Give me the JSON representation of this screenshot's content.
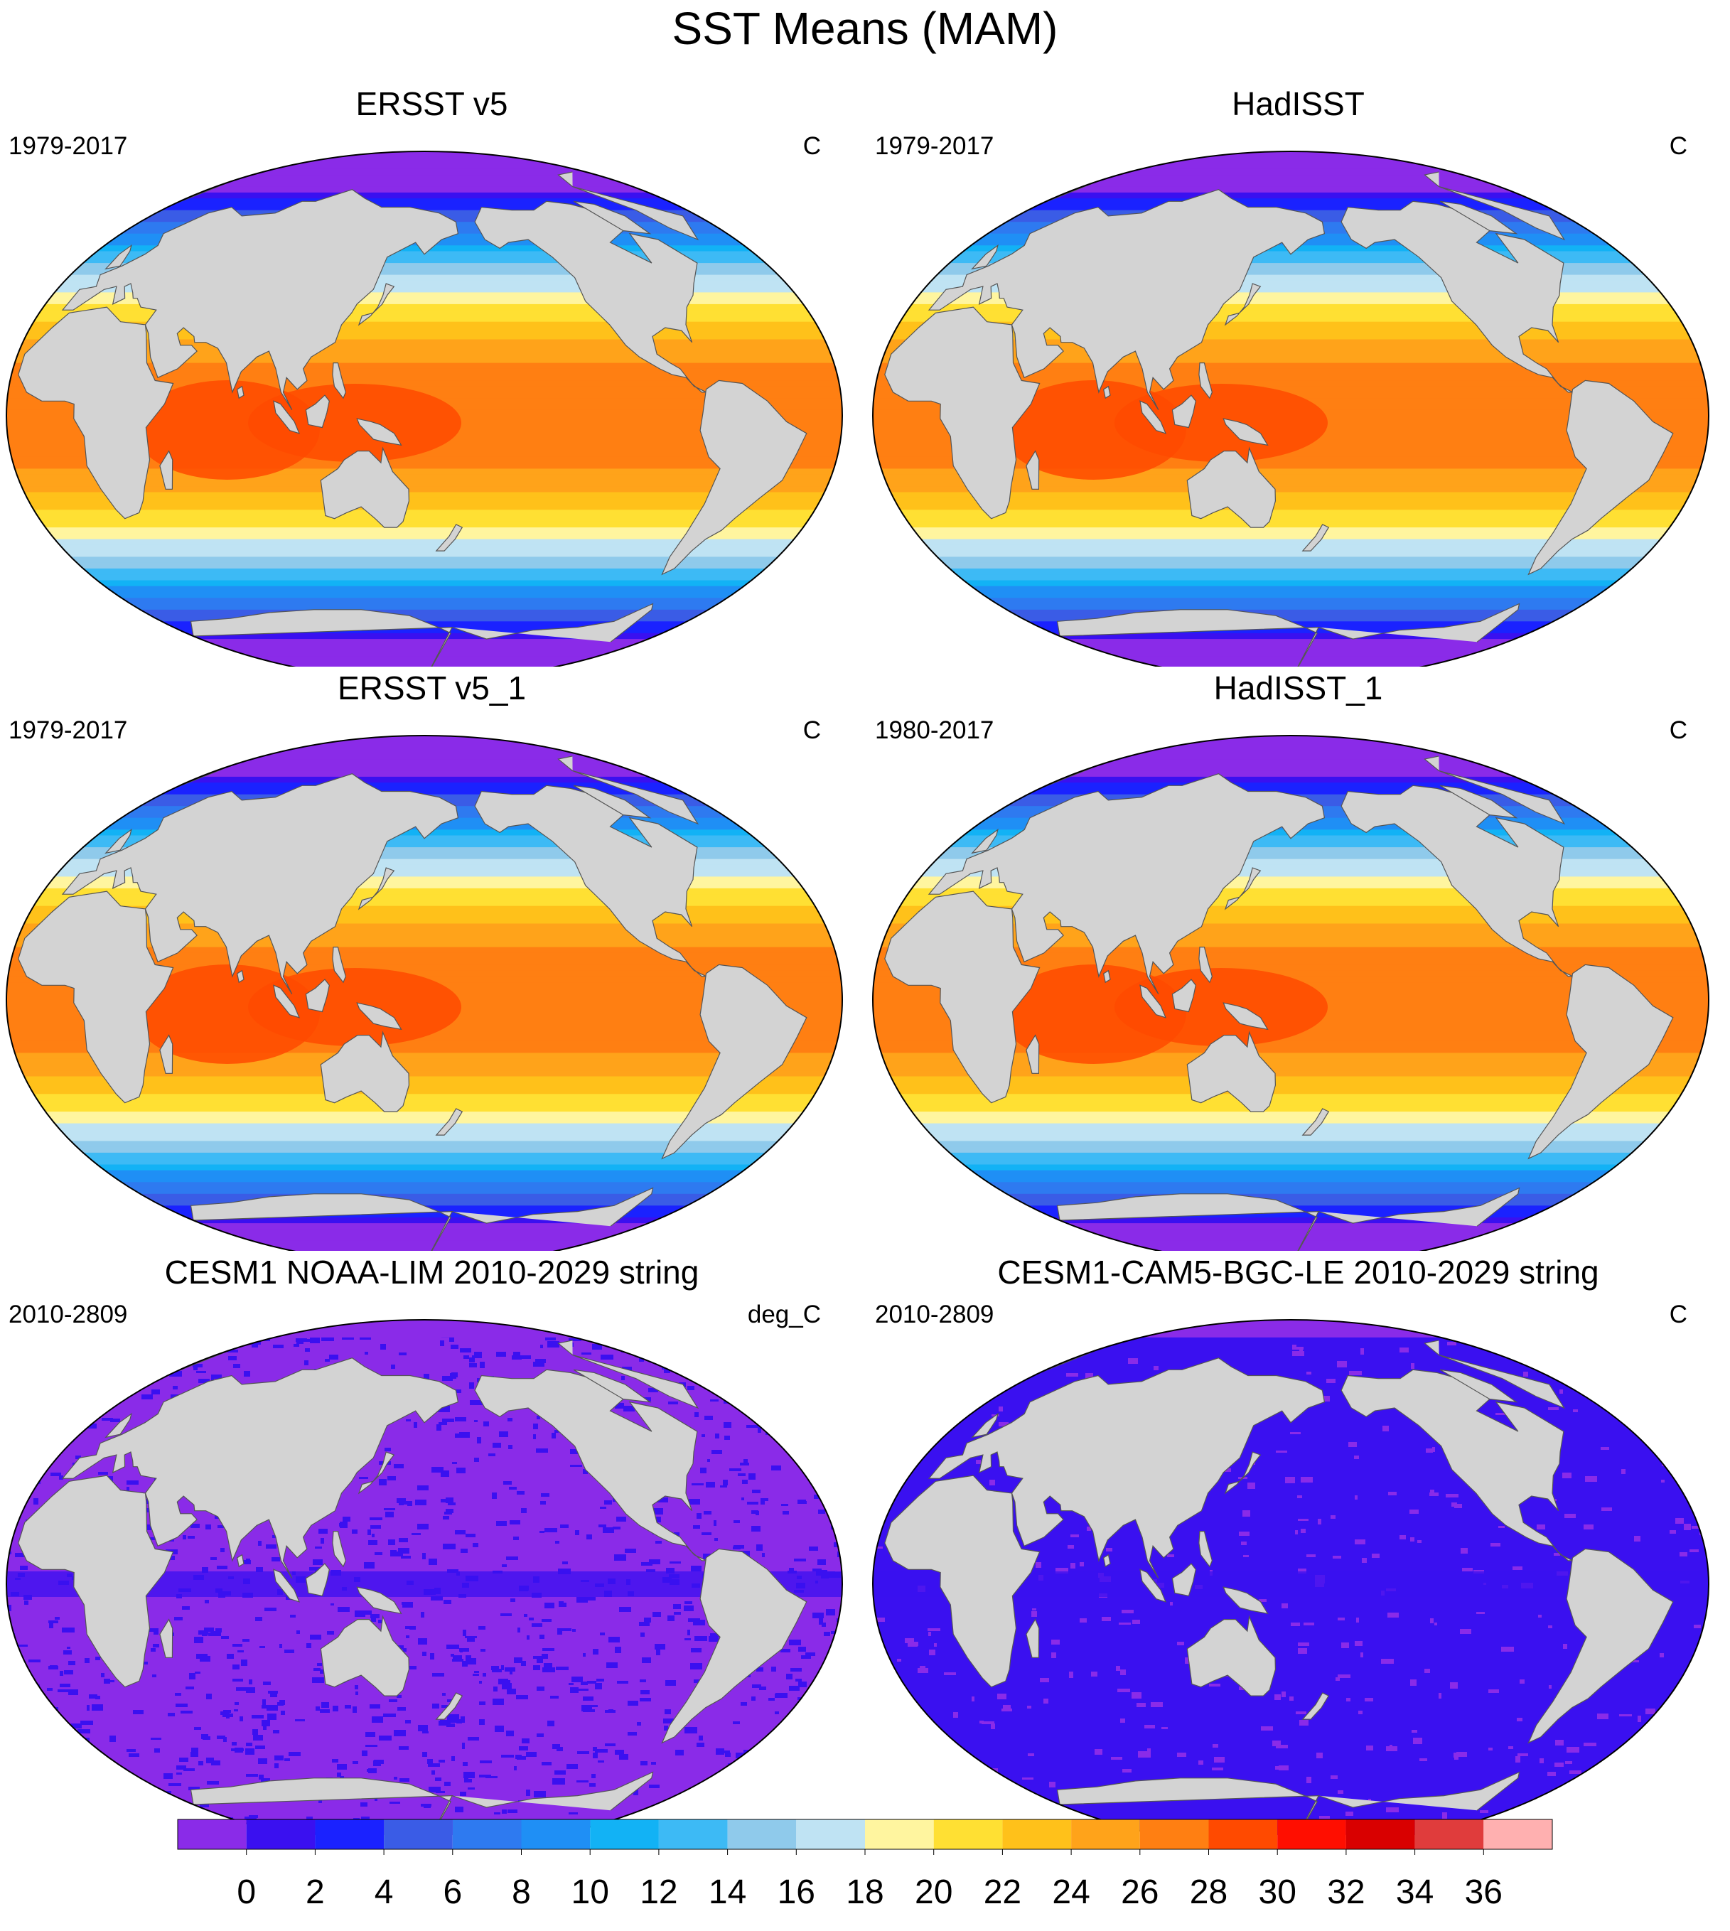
{
  "title": "SST Means (MAM)",
  "panels": [
    {
      "title": "ERSST v5",
      "period": "1979-2017",
      "units": "C",
      "style": "sst"
    },
    {
      "title": "HadISST",
      "period": "1979-2017",
      "units": "C",
      "style": "sst"
    },
    {
      "title": "ERSST v5_1",
      "period": "1979-2017",
      "units": "C",
      "style": "sst"
    },
    {
      "title": "HadISST_1",
      "period": "1980-2017",
      "units": "C",
      "style": "sst"
    },
    {
      "title": "CESM1 NOAA-LIM 2010-2029 string",
      "period": "2010-2809",
      "units": "deg_C",
      "style": "noisy"
    },
    {
      "title": "CESM1-CAM5-BGC-LE 2010-2029 string",
      "period": "2010-2809",
      "units": "C",
      "style": "flat"
    }
  ],
  "colorbar": {
    "labels": [
      "0",
      "2",
      "4",
      "6",
      "8",
      "10",
      "12",
      "14",
      "16",
      "18",
      "20",
      "22",
      "24",
      "26",
      "28",
      "30",
      "32",
      "34",
      "36"
    ],
    "colors": [
      "#8a2be8",
      "#3a10f0",
      "#1a22ff",
      "#3a5ce6",
      "#2e7af0",
      "#1f8ff5",
      "#12b2f5",
      "#3dbaf5",
      "#8fcaeb",
      "#bfe3f3",
      "#fff59f",
      "#ffe033",
      "#ffc11a",
      "#ffa31a",
      "#ff7f12",
      "#ff4a00",
      "#ff0e00",
      "#d90000",
      "#e03c3c",
      "#ffb0b0"
    ]
  },
  "land_color": "#d3d3d3"
}
